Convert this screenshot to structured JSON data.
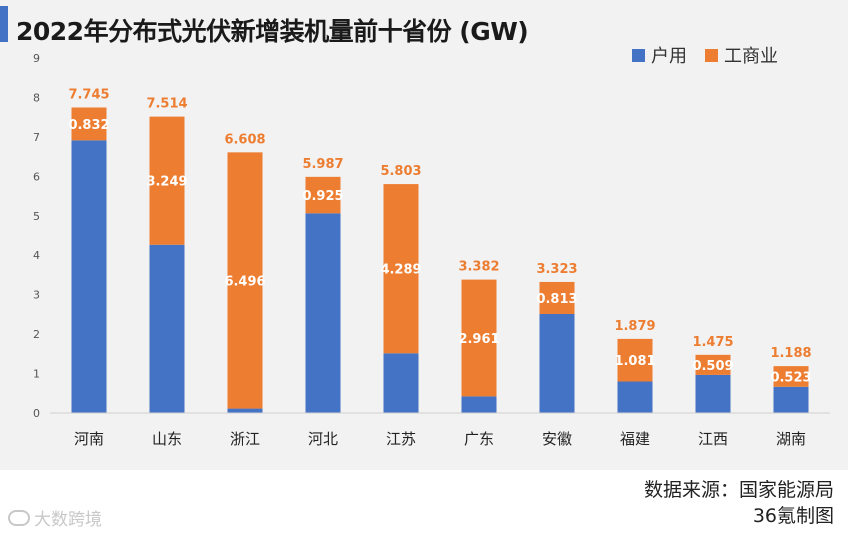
{
  "chart_data": {
    "type": "bar",
    "stacked": true,
    "title": "2022年分布式光伏新增装机量前十省份 (GW)",
    "categories": [
      "河南",
      "山东",
      "浙江",
      "河北",
      "江苏",
      "广东",
      "安徽",
      "福建",
      "江西",
      "湖南"
    ],
    "series": [
      {
        "name": "户用",
        "color": "#4472c4",
        "values": [
          6.913,
          4.265,
          0.112,
          5.062,
          1.514,
          0.421,
          2.51,
          0.798,
          0.966,
          0.665
        ]
      },
      {
        "name": "工商业",
        "color": "#ed7d31",
        "values": [
          0.832,
          3.249,
          6.496,
          0.925,
          4.289,
          2.961,
          0.813,
          1.081,
          0.509,
          0.523
        ]
      }
    ],
    "totals": [
      7.745,
      7.514,
      6.608,
      5.987,
      5.803,
      3.382,
      3.323,
      1.879,
      1.475,
      1.188
    ],
    "total_labels": [
      "7.745",
      "7.514",
      "6.608",
      "5.987",
      "5.803",
      "3.382",
      "3.323",
      "1.879",
      "1.475",
      "1.188"
    ],
    "segment_labels": [
      "0.832",
      "3.249",
      "6.496",
      "0.925",
      "4.289",
      "2.961",
      "0.813",
      "1.081",
      "0.509",
      "0.523"
    ],
    "ylim": [
      0,
      9
    ],
    "yticks": [
      "0",
      "1",
      "2",
      "3",
      "4",
      "5",
      "6",
      "7",
      "8",
      "9"
    ],
    "xlabel": "",
    "ylabel": "",
    "legend_position": "top-right",
    "grid": false
  },
  "source_note": {
    "line1": "数据来源：国家能源局",
    "line2": "36氪制图"
  },
  "watermark": {
    "text": "大数跨境"
  }
}
